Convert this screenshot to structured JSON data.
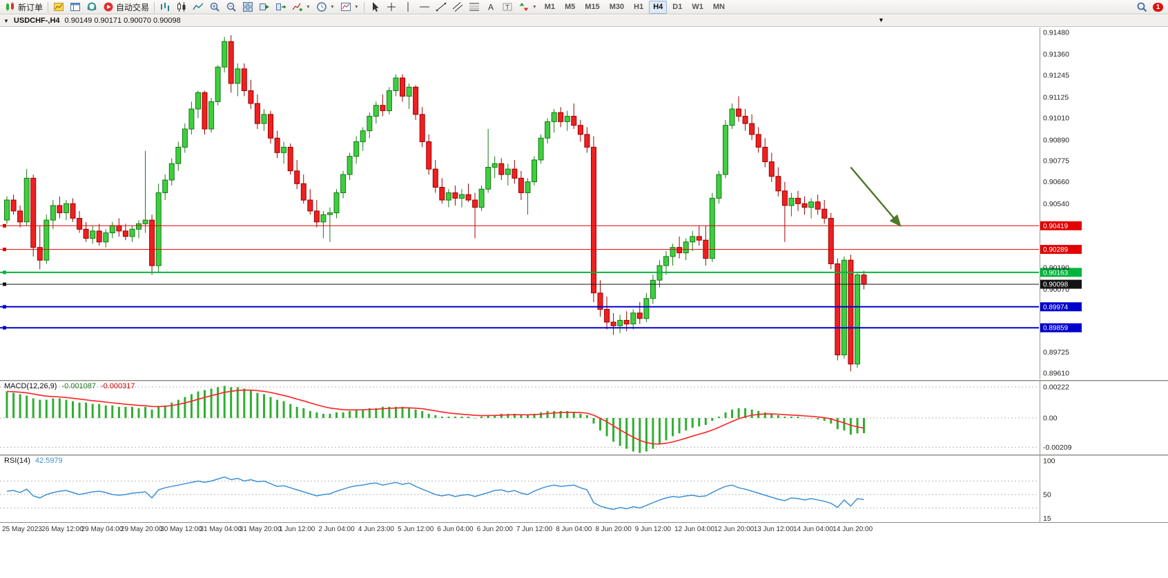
{
  "toolbar": {
    "left_buttons": [
      {
        "name": "new-order-button",
        "icon": "neworder",
        "label": "新订单"
      },
      {
        "name": "separator"
      },
      {
        "name": "new-chart-button",
        "icon": "chartyellow"
      },
      {
        "name": "profiles-button",
        "icon": "profiles"
      },
      {
        "name": "data-window-button",
        "icon": "headset"
      },
      {
        "name": "auto-trading-button",
        "icon": "autotrade",
        "label": "自动交易"
      },
      {
        "name": "separator"
      },
      {
        "name": "bar-chart-type-button",
        "icon": "bars"
      },
      {
        "name": "candlestick-chart-type-button",
        "icon": "candletype"
      },
      {
        "name": "line-chart-type-button",
        "icon": "linetype"
      },
      {
        "name": "zoom-in-button",
        "icon": "zoomin"
      },
      {
        "name": "zoom-out-button",
        "icon": "zoomout"
      },
      {
        "name": "tile-windows-button",
        "icon": "tile"
      },
      {
        "name": "auto-scroll-button",
        "icon": "autoscroll"
      },
      {
        "name": "chart-shift-button",
        "icon": "chartshift"
      },
      {
        "name": "indicators-button",
        "icon": "indicators",
        "dropdown": true
      },
      {
        "name": "periods-button",
        "icon": "clock",
        "dropdown": true
      },
      {
        "name": "templates-button",
        "icon": "template",
        "dropdown": true
      },
      {
        "name": "separator"
      },
      {
        "name": "cursor-button",
        "icon": "cursor"
      },
      {
        "name": "crosshair-button",
        "icon": "crosshair"
      },
      {
        "name": "vertical-line-button",
        "icon": "vline"
      },
      {
        "name": "horizontal-line-button",
        "icon": "hline"
      },
      {
        "name": "trendline-button",
        "icon": "tline"
      },
      {
        "name": "channel-button",
        "icon": "channel"
      },
      {
        "name": "fibonacci-button",
        "icon": "fibo"
      },
      {
        "name": "text-button",
        "icon": "textA"
      },
      {
        "name": "text-label-button",
        "icon": "labelT"
      },
      {
        "name": "arrows-button",
        "icon": "arrows",
        "dropdown": true
      }
    ],
    "timeframes": [
      "M1",
      "M5",
      "M15",
      "M30",
      "H1",
      "H4",
      "D1",
      "W1",
      "MN"
    ],
    "active_timeframe": "H4",
    "right_buttons": [
      {
        "name": "search-button",
        "icon": "search"
      },
      {
        "name": "alerts-button",
        "badge": "1"
      }
    ]
  },
  "chart": {
    "title": "USDCHF-,H4",
    "ohlc": "0.90149 0.90171 0.90070 0.90098"
  },
  "macd": {
    "label": "MACD(12,26,9)",
    "value_main": "-0.001087",
    "value_signal": "-0.000317"
  },
  "rsi": {
    "label": "RSI(14)",
    "value": "42.5979"
  },
  "chart_data": {
    "type": "candlestick",
    "symbol": "USDCHF",
    "timeframe": "H4",
    "colors": {
      "up": "#3fce3f",
      "up_border": "#157815",
      "down": "#f02020",
      "down_border": "#9a0000",
      "macd_hist": "#2fae2f",
      "macd_signal": "#ff2020",
      "rsi_line": "#3d8fd6"
    },
    "ylim_main": [
      0.8955,
      0.9153
    ],
    "candles": [
      [
        0.9045,
        0.9058,
        0.9043,
        0.9056
      ],
      [
        0.9056,
        0.9059,
        0.9048,
        0.905
      ],
      [
        0.905,
        0.9053,
        0.9041,
        0.9044
      ],
      [
        0.9044,
        0.9073,
        0.9042,
        0.9068
      ],
      [
        0.9068,
        0.907,
        0.9025,
        0.903
      ],
      [
        0.903,
        0.9042,
        0.9018,
        0.9023
      ],
      [
        0.9023,
        0.9048,
        0.9021,
        0.9045
      ],
      [
        0.9045,
        0.9056,
        0.904,
        0.9053
      ],
      [
        0.9053,
        0.9058,
        0.9046,
        0.9049
      ],
      [
        0.9049,
        0.9056,
        0.9045,
        0.9054
      ],
      [
        0.9054,
        0.9057,
        0.9044,
        0.9046
      ],
      [
        0.9046,
        0.905,
        0.9038,
        0.904
      ],
      [
        0.904,
        0.9044,
        0.9033,
        0.9035
      ],
      [
        0.9035,
        0.9042,
        0.9032,
        0.9039
      ],
      [
        0.9039,
        0.9043,
        0.9031,
        0.9033
      ],
      [
        0.9033,
        0.904,
        0.903,
        0.9038
      ],
      [
        0.9038,
        0.9044,
        0.9035,
        0.9042
      ],
      [
        0.9042,
        0.9046,
        0.9036,
        0.9039
      ],
      [
        0.9039,
        0.9043,
        0.9034,
        0.9036
      ],
      [
        0.9036,
        0.9042,
        0.9033,
        0.904
      ],
      [
        0.904,
        0.9045,
        0.9035,
        0.9043
      ],
      [
        0.9043,
        0.9083,
        0.9038,
        0.9045
      ],
      [
        0.9045,
        0.9048,
        0.9015,
        0.902
      ],
      [
        0.902,
        0.9065,
        0.9016,
        0.906
      ],
      [
        0.906,
        0.907,
        0.9056,
        0.9067
      ],
      [
        0.9067,
        0.9079,
        0.9064,
        0.9076
      ],
      [
        0.9076,
        0.9088,
        0.9072,
        0.9085
      ],
      [
        0.9085,
        0.9098,
        0.9082,
        0.9095
      ],
      [
        0.9095,
        0.911,
        0.9092,
        0.9106
      ],
      [
        0.9106,
        0.9116,
        0.9101,
        0.9115
      ],
      [
        0.9115,
        0.9116,
        0.9092,
        0.9095
      ],
      [
        0.9095,
        0.9112,
        0.9093,
        0.911
      ],
      [
        0.911,
        0.913,
        0.9108,
        0.9129
      ],
      [
        0.9129,
        0.91455,
        0.9126,
        0.9143
      ],
      [
        0.9143,
        0.91465,
        0.9115,
        0.912
      ],
      [
        0.912,
        0.9131,
        0.9113,
        0.9128
      ],
      [
        0.9128,
        0.9131,
        0.9113,
        0.9116
      ],
      [
        0.9116,
        0.9122,
        0.9106,
        0.9109
      ],
      [
        0.9109,
        0.9114,
        0.9095,
        0.9098
      ],
      [
        0.9098,
        0.9106,
        0.9094,
        0.9103
      ],
      [
        0.9103,
        0.9105,
        0.9087,
        0.909
      ],
      [
        0.909,
        0.9094,
        0.9079,
        0.9082
      ],
      [
        0.9082,
        0.9088,
        0.9076,
        0.9085
      ],
      [
        0.9085,
        0.9087,
        0.907,
        0.9072
      ],
      [
        0.9072,
        0.9078,
        0.9062,
        0.9065
      ],
      [
        0.9065,
        0.907,
        0.9054,
        0.9056
      ],
      [
        0.9056,
        0.9062,
        0.9048,
        0.905
      ],
      [
        0.905,
        0.9056,
        0.9041,
        0.9044
      ],
      [
        0.9044,
        0.905,
        0.9035,
        0.9048
      ],
      [
        0.9048,
        0.9052,
        0.9033,
        0.9049
      ],
      [
        0.9049,
        0.9062,
        0.9046,
        0.906
      ],
      [
        0.906,
        0.9072,
        0.9057,
        0.907
      ],
      [
        0.907,
        0.9082,
        0.9067,
        0.908
      ],
      [
        0.908,
        0.9091,
        0.9076,
        0.9088
      ],
      [
        0.9088,
        0.9096,
        0.9083,
        0.9094
      ],
      [
        0.9094,
        0.9104,
        0.909,
        0.9102
      ],
      [
        0.9102,
        0.911,
        0.9098,
        0.9108
      ],
      [
        0.9108,
        0.9114,
        0.9102,
        0.9105
      ],
      [
        0.9105,
        0.9118,
        0.9103,
        0.9116
      ],
      [
        0.9116,
        0.9125,
        0.9113,
        0.9123
      ],
      [
        0.9123,
        0.9125,
        0.911,
        0.9113
      ],
      [
        0.9113,
        0.912,
        0.9106,
        0.9118
      ],
      [
        0.9118,
        0.9119,
        0.91,
        0.9103
      ],
      [
        0.9103,
        0.9107,
        0.9085,
        0.9088
      ],
      [
        0.9088,
        0.9092,
        0.907,
        0.9073
      ],
      [
        0.9073,
        0.9078,
        0.906,
        0.9063
      ],
      [
        0.9063,
        0.9068,
        0.9054,
        0.9056
      ],
      [
        0.9056,
        0.9062,
        0.9052,
        0.906
      ],
      [
        0.906,
        0.9064,
        0.9053,
        0.9057
      ],
      [
        0.9057,
        0.9062,
        0.9052,
        0.9059
      ],
      [
        0.9059,
        0.9065,
        0.9055,
        0.9056
      ],
      [
        0.9056,
        0.906,
        0.9035,
        0.9052
      ],
      [
        0.9052,
        0.9064,
        0.905,
        0.9062
      ],
      [
        0.9062,
        0.9095,
        0.906,
        0.9074
      ],
      [
        0.9074,
        0.908,
        0.9068,
        0.9076
      ],
      [
        0.9076,
        0.9079,
        0.9067,
        0.907
      ],
      [
        0.907,
        0.9076,
        0.9064,
        0.9073
      ],
      [
        0.9073,
        0.9078,
        0.9065,
        0.9068
      ],
      [
        0.9068,
        0.9072,
        0.9056,
        0.906
      ],
      [
        0.906,
        0.9068,
        0.9048,
        0.9066
      ],
      [
        0.9066,
        0.908,
        0.9064,
        0.9078
      ],
      [
        0.9078,
        0.9092,
        0.9076,
        0.909
      ],
      [
        0.909,
        0.9101,
        0.9087,
        0.9099
      ],
      [
        0.9099,
        0.9106,
        0.9093,
        0.9104
      ],
      [
        0.9104,
        0.9107,
        0.9096,
        0.9099
      ],
      [
        0.9099,
        0.9105,
        0.9094,
        0.9102
      ],
      [
        0.9102,
        0.9109,
        0.9095,
        0.9097
      ],
      [
        0.9097,
        0.91,
        0.9088,
        0.9092
      ],
      [
        0.9092,
        0.9096,
        0.9082,
        0.9085
      ],
      [
        0.9085,
        0.9091,
        0.9,
        0.9005
      ],
      [
        0.9005,
        0.9012,
        0.8992,
        0.8996
      ],
      [
        0.8996,
        0.9003,
        0.8985,
        0.8989
      ],
      [
        0.8989,
        0.8994,
        0.8982,
        0.8987
      ],
      [
        0.8987,
        0.8993,
        0.8983,
        0.899
      ],
      [
        0.899,
        0.8995,
        0.8984,
        0.8988
      ],
      [
        0.8988,
        0.8996,
        0.8985,
        0.8994
      ],
      [
        0.8994,
        0.9,
        0.8988,
        0.8991
      ],
      [
        0.8991,
        0.9005,
        0.8989,
        0.9002
      ],
      [
        0.9002,
        0.9015,
        0.8999,
        0.9012
      ],
      [
        0.9012,
        0.9023,
        0.9008,
        0.902
      ],
      [
        0.902,
        0.9028,
        0.9015,
        0.9025
      ],
      [
        0.9025,
        0.9032,
        0.902,
        0.903
      ],
      [
        0.903,
        0.9036,
        0.9024,
        0.9027
      ],
      [
        0.9027,
        0.9035,
        0.9023,
        0.9033
      ],
      [
        0.9033,
        0.9039,
        0.9028,
        0.9036
      ],
      [
        0.9036,
        0.9042,
        0.9031,
        0.9034
      ],
      [
        0.9034,
        0.9042,
        0.902,
        0.9024
      ],
      [
        0.9024,
        0.906,
        0.9022,
        0.9057
      ],
      [
        0.9057,
        0.9072,
        0.9054,
        0.907
      ],
      [
        0.907,
        0.91,
        0.9068,
        0.9097
      ],
      [
        0.9097,
        0.9109,
        0.9095,
        0.9106
      ],
      [
        0.9106,
        0.9113,
        0.9099,
        0.9102
      ],
      [
        0.9102,
        0.9106,
        0.9094,
        0.9098
      ],
      [
        0.9098,
        0.9103,
        0.9089,
        0.9092
      ],
      [
        0.9092,
        0.9096,
        0.9082,
        0.9085
      ],
      [
        0.9085,
        0.909,
        0.9074,
        0.9077
      ],
      [
        0.9077,
        0.9082,
        0.9066,
        0.9069
      ],
      [
        0.9069,
        0.9074,
        0.9058,
        0.9061
      ],
      [
        0.9061,
        0.9066,
        0.9033,
        0.9053
      ],
      [
        0.9053,
        0.906,
        0.9047,
        0.9057
      ],
      [
        0.9057,
        0.9061,
        0.905,
        0.9054
      ],
      [
        0.9054,
        0.9058,
        0.9048,
        0.9052
      ],
      [
        0.9052,
        0.9057,
        0.9046,
        0.9055
      ],
      [
        0.9055,
        0.9059,
        0.9048,
        0.9051
      ],
      [
        0.9051,
        0.9056,
        0.9043,
        0.9046
      ],
      [
        0.9046,
        0.9049,
        0.9018,
        0.9021
      ],
      [
        0.9021,
        0.9024,
        0.8968,
        0.8971
      ],
      [
        0.8971,
        0.9025,
        0.8969,
        0.9023
      ],
      [
        0.9023,
        0.9026,
        0.8962,
        0.8966
      ],
      [
        0.8966,
        0.9016,
        0.8964,
        0.90149
      ],
      [
        0.90149,
        0.90171,
        0.9007,
        0.90098
      ]
    ],
    "macd_histogram": [
      0.0019,
      0.0018,
      0.0017,
      0.0016,
      0.0014,
      0.0013,
      0.0013,
      0.0014,
      0.0014,
      0.0013,
      0.0012,
      0.0011,
      0.0011,
      0.001,
      0.001,
      0.0009,
      0.0009,
      0.0008,
      0.0008,
      0.0008,
      0.0007,
      0.0008,
      0.0006,
      0.0008,
      0.0009,
      0.0011,
      0.0013,
      0.0015,
      0.0017,
      0.0019,
      0.002,
      0.0021,
      0.0022,
      0.0023,
      0.0022,
      0.0022,
      0.0021,
      0.002,
      0.0018,
      0.0017,
      0.0015,
      0.0013,
      0.0012,
      0.001,
      0.0008,
      0.0007,
      0.0005,
      0.0004,
      0.0003,
      0.0003,
      0.0004,
      0.0004,
      0.0005,
      0.0006,
      0.0006,
      0.0007,
      0.0007,
      0.0008,
      0.0008,
      0.0008,
      0.0008,
      0.0007,
      0.0006,
      0.0005,
      0.0003,
      0.0002,
      0.0001,
      0.0001,
      0.0001,
      0.0001,
      0.0001,
      0.0,
      0.0001,
      0.0002,
      0.0002,
      0.0003,
      0.0003,
      0.0003,
      0.0002,
      0.0002,
      0.0003,
      0.0004,
      0.0005,
      0.0005,
      0.0005,
      0.0005,
      0.0004,
      0.0003,
      0.0002,
      -0.0004,
      -0.0009,
      -0.0013,
      -0.0017,
      -0.002,
      -0.0022,
      -0.0024,
      -0.0025,
      -0.0024,
      -0.0022,
      -0.0019,
      -0.0016,
      -0.0013,
      -0.0011,
      -0.0009,
      -0.0007,
      -0.0006,
      -0.0005,
      -0.0002,
      0.0001,
      0.0004,
      0.0006,
      0.0007,
      0.0007,
      0.0006,
      0.0005,
      0.0004,
      0.0003,
      0.0002,
      0.0001,
      0.0001,
      0.0001,
      0.0,
      0.0,
      -0.0001,
      -0.0002,
      -0.0004,
      -0.0008,
      -0.0009,
      -0.0012,
      -0.0011,
      -0.001087
    ],
    "rsi": [
      55,
      56,
      53,
      58,
      48,
      45,
      50,
      53,
      55,
      56,
      53,
      50,
      52,
      54,
      55,
      53,
      50,
      49,
      50,
      52,
      53,
      54,
      45,
      57,
      60,
      62,
      64,
      66,
      68,
      70,
      68,
      70,
      73,
      76,
      72,
      74,
      70,
      72,
      69,
      70,
      66,
      62,
      63,
      60,
      57,
      54,
      51,
      48,
      50,
      51,
      55,
      58,
      61,
      63,
      64,
      66,
      67,
      64,
      66,
      68,
      65,
      67,
      62,
      58,
      54,
      50,
      48,
      50,
      47,
      49,
      50,
      47,
      50,
      53,
      56,
      57,
      54,
      56,
      52,
      50,
      55,
      59,
      62,
      64,
      62,
      63,
      64,
      60,
      57,
      38,
      33,
      30,
      28,
      31,
      29,
      32,
      30,
      34,
      38,
      42,
      45,
      47,
      46,
      48,
      49,
      47,
      48,
      53,
      58,
      62,
      64,
      60,
      58,
      55,
      52,
      49,
      46,
      43,
      41,
      45,
      44,
      42,
      44,
      42,
      40,
      37,
      31,
      42,
      33,
      44,
      42.5979
    ],
    "price_lines": [
      {
        "price": 0.90419,
        "label": "0.90419",
        "color": "#e00000",
        "width": 1
      },
      {
        "price": 0.90289,
        "label": "0.90289",
        "color": "#e00000",
        "width": 1
      },
      {
        "price": 0.90163,
        "label": "0.90163",
        "color": "#00b43c",
        "width": 2
      },
      {
        "price": 0.90098,
        "label": "0.90098",
        "color": "#141414",
        "width": 1
      },
      {
        "price": 0.89974,
        "label": "0.89974",
        "color": "#0000cc",
        "width": 2
      },
      {
        "price": 0.89859,
        "label": "0.89859",
        "color": "#0000cc",
        "width": 2
      }
    ],
    "y_axis_labels": [
      "0.91480",
      "0.91360",
      "0.91245",
      "0.91125",
      "0.91010",
      "0.90890",
      "0.90775",
      "0.90660",
      "0.90540",
      "0.90190",
      "0.90070",
      "0.89725",
      "0.89610"
    ],
    "macd_axis": [
      {
        "v": 0.00222,
        "label": "0.00222"
      },
      {
        "v": 0,
        "label": "0.00"
      },
      {
        "v": -0.00209,
        "label": "-0.00209"
      }
    ],
    "rsi_axis": [
      {
        "v": 100,
        "label": "100"
      },
      {
        "v": 50,
        "label": "50"
      },
      {
        "v": 15,
        "label": "15"
      }
    ],
    "rsi_levels": [
      70,
      50,
      30
    ],
    "arrow": {
      "from_bar": 128,
      "from_price": 0.9074,
      "to_bar": 135.5,
      "to_price": 0.9042,
      "color": "#4e7a27"
    },
    "x_axis_labels": [
      "25 May 2023",
      "26 May 12:00",
      "29 May 04:00",
      "29 May 20:00",
      "30 May 12:00",
      "31 May 04:00",
      "31 May 20:00",
      "1 Jun 12:00",
      "2 Jun 04:00",
      "4 Jun 23:00",
      "5 Jun 12:00",
      "6 Jun 04:00",
      "6 Jun 20:00",
      "7 Jun 12:00",
      "8 Jun 04:00",
      "8 Jun 20:00",
      "9 Jun 12:00",
      "12 Jun 04:00",
      "12 Jun 20:00",
      "13 Jun 12:00",
      "14 Jun 04:00",
      "14 Jun 20:00"
    ]
  }
}
